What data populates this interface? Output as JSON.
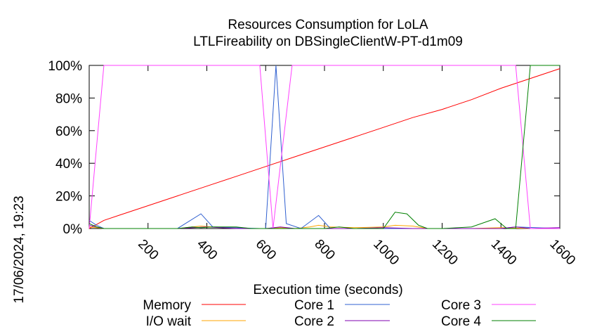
{
  "chart_data": {
    "type": "line",
    "title": "Resources Consumption for LoLA",
    "subtitle": "LTLFireability on DBSingleClientW-PT-d1m09",
    "xlabel": "Execution time (seconds)",
    "ylabel": "",
    "timestamp": "17/06/2024, 19:23",
    "xlim": [
      0,
      1600
    ],
    "ylim": [
      0,
      100
    ],
    "x_ticks": [
      200,
      400,
      600,
      800,
      1000,
      1200,
      1400,
      1600
    ],
    "y_ticks": [
      {
        "value": 0,
        "label": "0%"
      },
      {
        "value": 20,
        "label": "20%"
      },
      {
        "value": 40,
        "label": "40%"
      },
      {
        "value": 60,
        "label": "60%"
      },
      {
        "value": 80,
        "label": "80%"
      },
      {
        "value": 100,
        "label": "100%"
      }
    ],
    "grid": false,
    "legend_position": "bottom",
    "series": [
      {
        "name": "Memory",
        "color": "#ff0000",
        "points": [
          [
            0,
            0
          ],
          [
            20,
            2
          ],
          [
            50,
            5
          ],
          [
            100,
            8
          ],
          [
            200,
            14
          ],
          [
            300,
            20
          ],
          [
            400,
            26
          ],
          [
            500,
            32
          ],
          [
            600,
            38
          ],
          [
            700,
            44
          ],
          [
            800,
            50
          ],
          [
            900,
            56
          ],
          [
            1000,
            62
          ],
          [
            1100,
            68
          ],
          [
            1200,
            73
          ],
          [
            1300,
            79
          ],
          [
            1400,
            86
          ],
          [
            1500,
            92
          ],
          [
            1600,
            98
          ]
        ]
      },
      {
        "name": "I/O wait",
        "color": "#ffa500",
        "points": [
          [
            0,
            1
          ],
          [
            25,
            0.5
          ],
          [
            50,
            0
          ],
          [
            300,
            0
          ],
          [
            350,
            1
          ],
          [
            380,
            1.5
          ],
          [
            420,
            1
          ],
          [
            500,
            0.5
          ],
          [
            550,
            0
          ],
          [
            600,
            0
          ],
          [
            650,
            0.5
          ],
          [
            700,
            0
          ],
          [
            750,
            1
          ],
          [
            780,
            2
          ],
          [
            820,
            1
          ],
          [
            900,
            0.5
          ],
          [
            1000,
            1
          ],
          [
            1040,
            2
          ],
          [
            1100,
            1.5
          ],
          [
            1150,
            0
          ],
          [
            1300,
            0
          ],
          [
            1400,
            0.5
          ],
          [
            1500,
            0
          ],
          [
            1600,
            0
          ]
        ]
      },
      {
        "name": "Core 1",
        "color": "#3060d0",
        "points": [
          [
            0,
            5
          ],
          [
            25,
            2
          ],
          [
            50,
            0
          ],
          [
            300,
            0
          ],
          [
            380,
            9
          ],
          [
            420,
            1
          ],
          [
            580,
            0
          ],
          [
            600,
            0
          ],
          [
            635,
            100
          ],
          [
            670,
            3
          ],
          [
            720,
            0
          ],
          [
            780,
            8
          ],
          [
            820,
            0
          ],
          [
            1000,
            0
          ],
          [
            1400,
            0
          ],
          [
            1450,
            1
          ],
          [
            1600,
            0
          ]
        ]
      },
      {
        "name": "Core 2",
        "color": "#8000b0",
        "points": [
          [
            0,
            2
          ],
          [
            25,
            1
          ],
          [
            50,
            0
          ],
          [
            300,
            0
          ],
          [
            400,
            1
          ],
          [
            500,
            0
          ],
          [
            600,
            0
          ],
          [
            650,
            1
          ],
          [
            700,
            0
          ],
          [
            900,
            0
          ],
          [
            1000,
            0.5
          ],
          [
            1100,
            0
          ],
          [
            1400,
            0
          ],
          [
            1450,
            1
          ],
          [
            1500,
            0
          ],
          [
            1600,
            0.5
          ]
        ]
      },
      {
        "name": "Core 3",
        "color": "#ff40ff",
        "points": [
          [
            0,
            0
          ],
          [
            50,
            100
          ],
          [
            580,
            100
          ],
          [
            625,
            0
          ],
          [
            690,
            100
          ],
          [
            1450,
            100
          ],
          [
            1500,
            0
          ],
          [
            1600,
            0
          ]
        ]
      },
      {
        "name": "Core 4",
        "color": "#008000",
        "points": [
          [
            0,
            3
          ],
          [
            25,
            1
          ],
          [
            50,
            0
          ],
          [
            300,
            0
          ],
          [
            350,
            1
          ],
          [
            380,
            0.5
          ],
          [
            420,
            1
          ],
          [
            500,
            1
          ],
          [
            550,
            0
          ],
          [
            600,
            0
          ],
          [
            700,
            0
          ],
          [
            800,
            0
          ],
          [
            850,
            1
          ],
          [
            900,
            0
          ],
          [
            1000,
            0
          ],
          [
            1040,
            10
          ],
          [
            1080,
            9
          ],
          [
            1120,
            2
          ],
          [
            1150,
            0
          ],
          [
            1200,
            0
          ],
          [
            1300,
            1
          ],
          [
            1380,
            6
          ],
          [
            1420,
            0
          ],
          [
            1450,
            0
          ],
          [
            1500,
            100
          ],
          [
            1600,
            100
          ]
        ]
      }
    ]
  }
}
